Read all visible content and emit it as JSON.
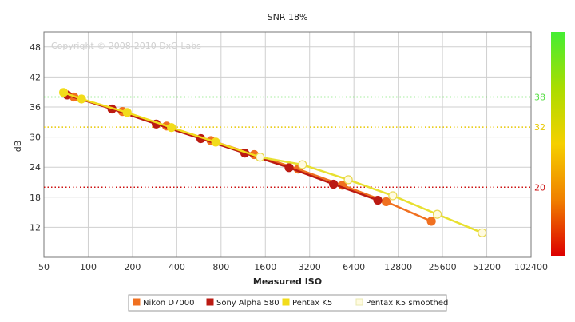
{
  "chart_data": {
    "type": "line",
    "title": "SNR 18%",
    "xlabel": "Measured ISO",
    "ylabel": "dB",
    "copyright": "Copyright © 2008-2010 DxO Labs",
    "x_scale": "log2",
    "xlim": [
      50,
      102400
    ],
    "ylim": [
      6,
      51
    ],
    "x_ticks": [
      50,
      100,
      200,
      400,
      800,
      1600,
      3200,
      6400,
      12800,
      25600,
      51200,
      102400
    ],
    "y_ticks": [
      12,
      18,
      24,
      30,
      36,
      42,
      48
    ],
    "grid": true,
    "reference_lines": [
      {
        "label": "38",
        "value": 38,
        "color": "#55dd44"
      },
      {
        "label": "32",
        "value": 32,
        "color": "#e8c800"
      },
      {
        "label": "20",
        "value": 20,
        "color": "#cc1111"
      }
    ],
    "color_scale": {
      "colors": [
        "#44ee33",
        "#aadd00",
        "#f5d000",
        "#f08000",
        "#dd0000"
      ]
    },
    "legend_position": "bottom",
    "series": [
      {
        "name": "Nikon D7000",
        "color": "#f07020",
        "marker_fill": "#f07020",
        "x": [
          80,
          171,
          341,
          683,
          1344,
          2680,
          5350,
          10600,
          21500
        ],
        "y": [
          38.0,
          35.1,
          32.2,
          29.3,
          26.5,
          23.6,
          20.4,
          17.1,
          13.2
        ]
      },
      {
        "name": "Sony Alpha 580",
        "color": "#bb1a12",
        "marker_fill": "#bb1a12",
        "x": [
          72,
          145,
          290,
          583,
          1160,
          2320,
          4650,
          9300
        ],
        "y": [
          38.4,
          35.6,
          32.6,
          29.7,
          26.8,
          23.9,
          20.6,
          17.4
        ]
      },
      {
        "name": "Pentax K5",
        "color": "#f2dc1a",
        "marker_fill": "#f2dc1a",
        "x": [
          68,
          90,
          184,
          368,
          736,
          1472
        ],
        "y": [
          38.9,
          37.6,
          34.9,
          31.9,
          29.0,
          26.0
        ]
      },
      {
        "name": "Pentax K5 smoothed",
        "color": "#e8e030",
        "marker_fill": "#fffbe0",
        "x": [
          1472,
          2860,
          5860,
          11760,
          23600,
          47600
        ],
        "y": [
          26.0,
          24.5,
          21.5,
          18.3,
          14.6,
          10.9
        ]
      }
    ]
  }
}
